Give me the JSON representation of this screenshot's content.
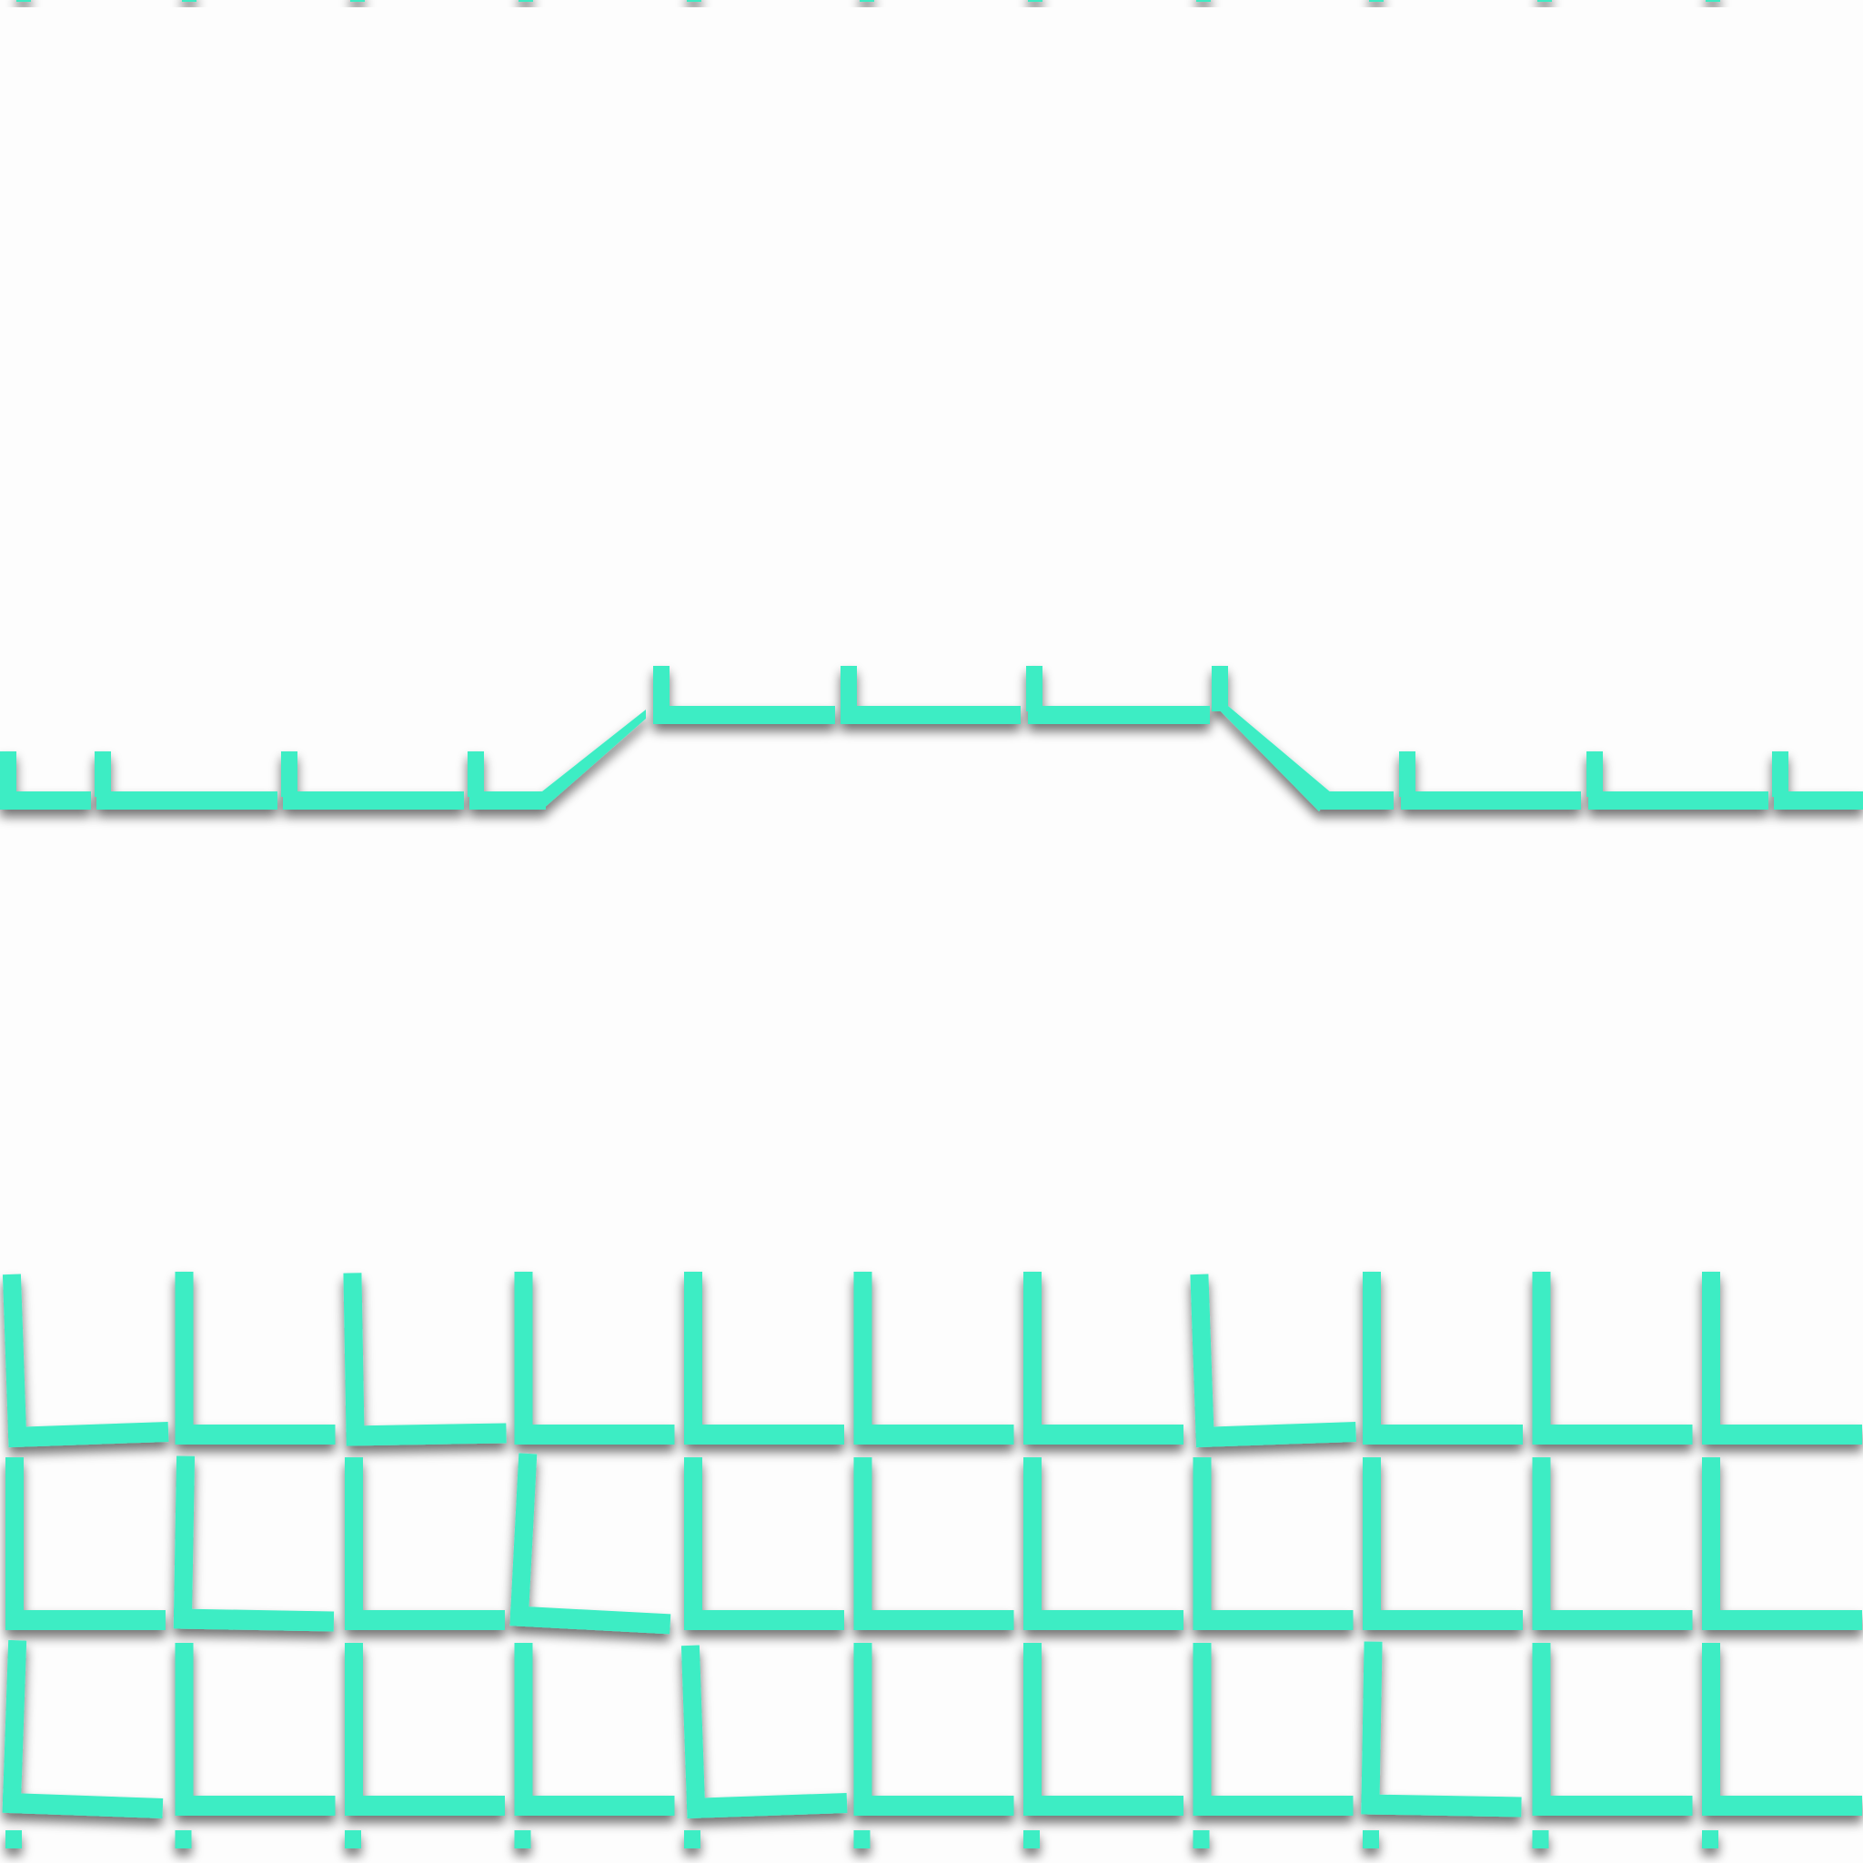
{
  "scene": {
    "background_color": "#fdfdfd",
    "wall_color": "#3dedc4",
    "shadow_color": "#505050"
  },
  "platform_track": {
    "description_icon": "wall-track-icon"
  },
  "brick_grid": {
    "rows": 3,
    "columns": 11,
    "description_icon": "wall-grid-icon"
  }
}
